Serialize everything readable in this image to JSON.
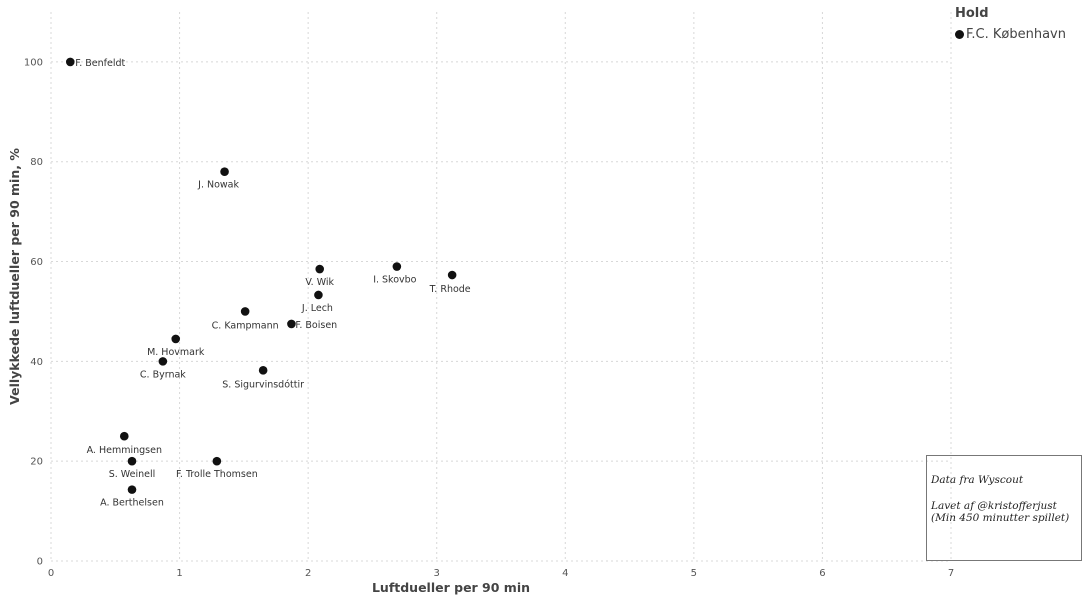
{
  "chart_data": {
    "type": "scatter",
    "xlabel": "Luftdueller per 90 min",
    "ylabel": "Vellykkede luftdueller per 90 min, %",
    "xlim": [
      0,
      7
    ],
    "ylim": [
      0,
      110
    ],
    "x_ticks": [
      "0",
      "1",
      "2",
      "3",
      "4",
      "5",
      "6",
      "7"
    ],
    "y_ticks": [
      "0",
      "20",
      "40",
      "60",
      "80",
      "100"
    ],
    "grid": true,
    "legend_position": "top-right",
    "series": [
      {
        "name": "F.C. København",
        "color": "#111111",
        "points": [
          {
            "label": "F. Benfeldt",
            "x": 0.15,
            "y": 100
          },
          {
            "label": "J. Nowak",
            "x": 1.35,
            "y": 78
          },
          {
            "label": "V. Wik",
            "x": 2.09,
            "y": 58.5
          },
          {
            "label": "I. Skovbo",
            "x": 2.69,
            "y": 59
          },
          {
            "label": "T. Rhode",
            "x": 3.12,
            "y": 57.3
          },
          {
            "label": "J. Lech",
            "x": 2.08,
            "y": 53.3
          },
          {
            "label": "C. Kampmann",
            "x": 1.51,
            "y": 50
          },
          {
            "label": "F. Boisen",
            "x": 1.87,
            "y": 47.5
          },
          {
            "label": "M. Hovmark",
            "x": 0.97,
            "y": 44.5
          },
          {
            "label": "C. Byrnak",
            "x": 0.87,
            "y": 40
          },
          {
            "label": "S. Sigurvinsdóttir",
            "x": 1.65,
            "y": 38.2
          },
          {
            "label": "A. Hemmingsen",
            "x": 0.57,
            "y": 25
          },
          {
            "label": "S. Weinell",
            "x": 0.63,
            "y": 20
          },
          {
            "label": "F. Trolle Thomsen",
            "x": 1.29,
            "y": 20
          },
          {
            "label": "A. Berthelsen",
            "x": 0.63,
            "y": 14.3
          }
        ]
      }
    ]
  },
  "legend": {
    "title": "Hold",
    "items": [
      "F.C. København"
    ]
  },
  "note": {
    "line1": "Data fra Wyscout",
    "line2": "Lavet af @kristofferjust",
    "line3": "(Min 450 minutter spillet)"
  }
}
